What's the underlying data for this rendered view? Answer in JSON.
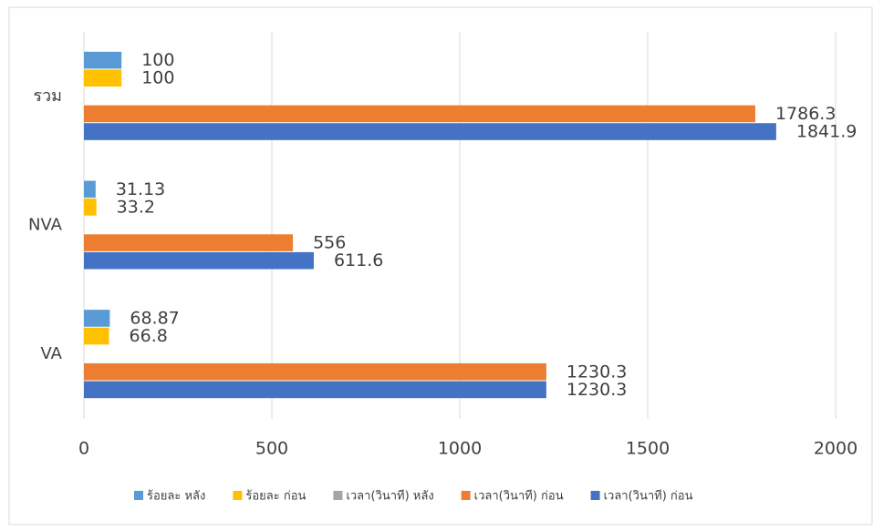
{
  "chart_data": {
    "type": "bar",
    "orientation": "horizontal",
    "categories": [
      "VA",
      "NVA",
      "รวม"
    ],
    "series": [
      {
        "name": "ร้อยละ หลัง",
        "color": "#5b9bd5",
        "values": [
          68.87,
          31.13,
          100
        ]
      },
      {
        "name": "ร้อยละ ก่อน",
        "color": "#ffc000",
        "values": [
          66.8,
          33.2,
          100
        ]
      },
      {
        "name": "เวลา(วินาที) หลัง",
        "color": "#a5a5a5",
        "values": [
          null,
          null,
          null
        ]
      },
      {
        "name": "เวลา(วินาที) ก่อน",
        "color": "#ed7d31",
        "values": [
          1230.3,
          556,
          1786.3
        ]
      },
      {
        "name": "เวลา(วินาที) ก่อน",
        "color": "#4472c4",
        "values": [
          1230.3,
          611.6,
          1841.9
        ]
      }
    ],
    "xlim": [
      0,
      2000
    ],
    "xticks": [
      0,
      500,
      1000,
      1500,
      2000
    ],
    "grid": true,
    "legend": "bottom"
  }
}
